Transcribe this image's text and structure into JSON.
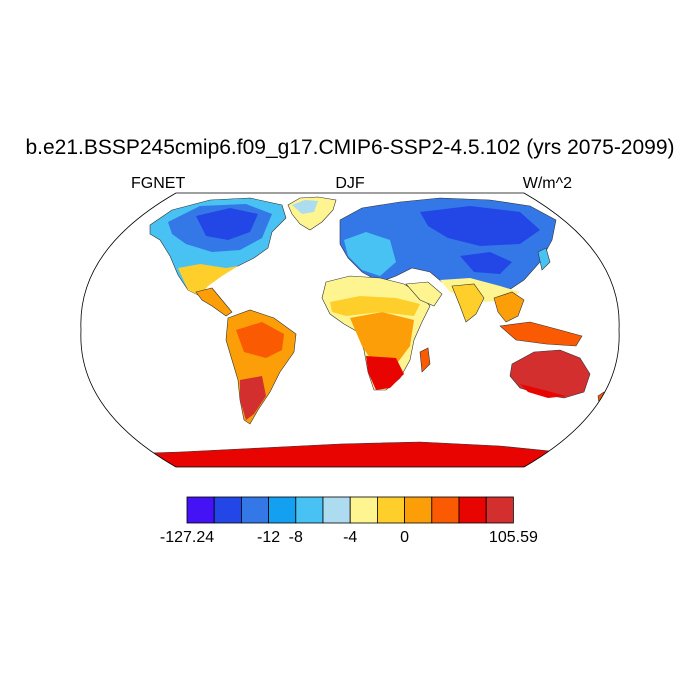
{
  "title": "b.e21.BSSP245cmip6.f09_g17.CMIP6-SSP2-4.5.102 (yrs 2075-2099)",
  "left_label": "FGNET",
  "center_label": "DJF",
  "right_label": "W/m^2",
  "colorbar": {
    "colors": [
      "#4412f5",
      "#2346e6",
      "#3478e8",
      "#13a0f0",
      "#48c1f3",
      "#addcf0",
      "#fef591",
      "#fece2b",
      "#fc9e08",
      "#f95a02",
      "#e80501",
      "#d32f2f"
    ],
    "labels": [
      {
        "text": "-127.24",
        "boundary": 0
      },
      {
        "text": "-12",
        "boundary": 3
      },
      {
        "text": "-8",
        "boundary": 4
      },
      {
        "text": "-4",
        "boundary": 6
      },
      {
        "text": "0",
        "boundary": 8
      },
      {
        "text": "105.59",
        "boundary": 12
      }
    ]
  }
}
